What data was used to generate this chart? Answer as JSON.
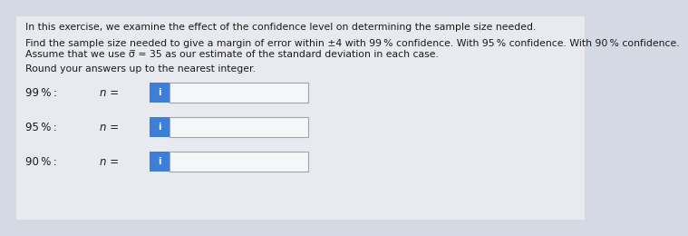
{
  "background_color": "#d4d9e4",
  "text_area_bg": "#f0f1f4",
  "title_line": "In this exercise, we examine the effect of the confidence level on determining the sample size needed.",
  "body_line1a": "Find the sample size needed to give a margin of error within ±4 with 99 % confidence. With 95 % confidence. With 90 % confidence.",
  "body_line1b": "Assume that we use σ̅ = 35 as our estimate of the standard deviation in each case.",
  "body_line2": "Round your answers up to the nearest integer.",
  "rows": [
    {
      "label": "99 % :",
      "var": "n ="
    },
    {
      "label": "95 % :",
      "var": "n ="
    },
    {
      "label": "90 % :",
      "var": "n ="
    }
  ],
  "input_box_color": "#f5f6f8",
  "input_box_border": "#9aa5b8",
  "button_color": "#3d7fd6",
  "text_color": "#1a1a1a",
  "font_size_title": 7.8,
  "font_size_body": 7.8,
  "font_size_label": 8.5
}
